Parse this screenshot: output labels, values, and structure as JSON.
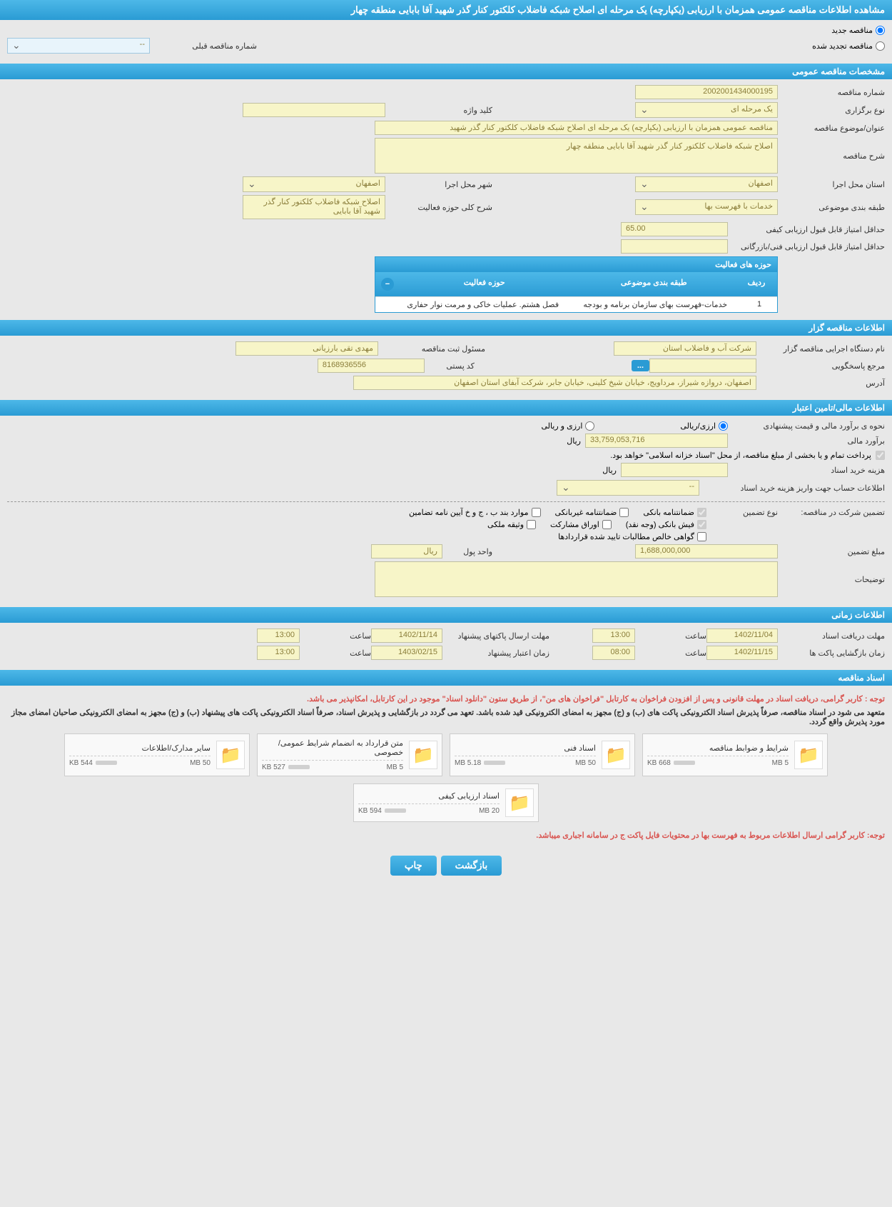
{
  "page_title": "مشاهده اطلاعات مناقصه عمومی همزمان با ارزیابی (یکپارچه) یک مرحله ای اصلاح شبکه فاضلاب کلکتور کنار گذر شهید آقا بابایی منطقه چهار",
  "colors": {
    "header_bg": "#2a9bd4",
    "header_gradient_top": "#4db8e8",
    "field_bg": "#f7f5c8",
    "field_border": "#c0c0a0",
    "field_text": "#8a7d3a",
    "page_bg": "#e8e8e8",
    "notice_red": "#d9534f"
  },
  "top_radio": {
    "option1": "مناقصه جدید",
    "option2": "مناقصه تجدید شده",
    "prev_number_label": "شماره مناقصه قبلی",
    "prev_number_value": "--"
  },
  "sections": {
    "general": "مشخصات مناقصه عمومی",
    "holder": "اطلاعات مناقصه گزار",
    "financial": "اطلاعات مالی/تامین اعتبار",
    "time": "اطلاعات زمانی",
    "documents": "اسناد مناقصه"
  },
  "general": {
    "tender_no_label": "شماره مناقصه",
    "tender_no": "2002001434000195",
    "type_label": "نوع برگزاری",
    "type": "یک مرحله ای",
    "keyword_label": "کلید واژه",
    "keyword": "",
    "subject_label": "عنوان/موضوع مناقصه",
    "subject": "مناقصه عمومی همزمان با ارزیابی (یکپارچه) یک مرحله ای اصلاح شبکه فاضلاب کلکتور کنار گذر شهید",
    "desc_label": "شرح مناقصه",
    "desc": "اصلاح شبکه فاضلاب کلکتور کنار گذر شهید آقا بابایی منطقه چهار",
    "province_label": "استان محل اجرا",
    "province": "اصفهان",
    "city_label": "شهر محل اجرا",
    "city": "اصفهان",
    "category_label": "طبقه بندی موضوعی",
    "category": "خدمات با فهرست بها",
    "scope_label": "شرح کلی حوزه فعالیت",
    "scope": "اصلاح شبکه فاضلاب کلکتور کنار گذر شهید آقا بابایی",
    "min_qual_label": "حداقل امتیاز قابل قبول ارزیابی کیفی",
    "min_qual": "65.00",
    "min_tech_label": "حداقل امتیاز قابل قبول ارزیابی فنی/بازرگانی",
    "min_tech": ""
  },
  "activity_table": {
    "title": "حوزه های فعالیت",
    "cols": {
      "row": "ردیف",
      "category": "طبقه بندی موضوعی",
      "activity": "حوزه فعالیت"
    },
    "rows": [
      {
        "row": "1",
        "category": "خدمات-فهرست بهای سازمان برنامه و بودجه",
        "activity": "فصل هشتم. عملیات خاکی و مرمت نوار حفاری"
      }
    ]
  },
  "holder": {
    "org_label": "نام دستگاه اجرایی مناقصه گزار",
    "org": "شرکت آب و فاضلاب استان",
    "reg_label": "مسئول ثبت مناقصه",
    "reg": "مهدی تقی بارزیانی",
    "responder_label": "مرجع پاسخگویی",
    "responder": "",
    "postal_label": "کد پستی",
    "postal": "8168936556",
    "address_label": "آدرس",
    "address": "اصفهان، دروازه شیراز، مرداویج، خیابان شیخ کلینی، خیابان جابر، شرکت آبفای استان اصفهان"
  },
  "financial": {
    "method_label": "نحوه ی برآورد مالی و قیمت پیشنهادی",
    "method_opt1": "ارزی/ریالی",
    "method_opt2": "ارزی و ریالی",
    "estimate_label": "برآورد مالی",
    "estimate": "33,759,053,716",
    "currency": "ریال",
    "treasury_note": "پرداخت تمام و یا بخشی از مبلغ مناقصه، از محل \"اسناد خزانه اسلامی\" خواهد بود.",
    "purchase_cost_label": "هزینه خرید اسناد",
    "purchase_cost": "",
    "account_label": "اطلاعات حساب جهت واریز هزینه خرید اسناد",
    "account": "--",
    "guarantee_title": "تضمین شرکت در مناقصه:",
    "guarantee_type_label": "نوع تضمین",
    "guarantee_opts": {
      "bank": "ضمانتنامه بانکی",
      "nonbank": "ضمانتنامه غیربانکی",
      "bond": "موارد بند ب ، ج و خ آیین نامه تضامین",
      "cash": "فیش بانکی (وجه نقد)",
      "securities": "اوراق مشارکت",
      "property": "وثیقه ملکی",
      "receivables": "گواهی خالص مطالبات تایید شده قراردادها"
    },
    "guarantee_amount_label": "مبلغ تضمین",
    "guarantee_amount": "1,688,000,000",
    "unit_label": "واحد پول",
    "unit": "ریال",
    "notes_label": "توضیحات",
    "notes": ""
  },
  "time": {
    "receipt_label": "مهلت دریافت اسناد",
    "receipt_date": "1402/11/04",
    "receipt_time_label": "ساعت",
    "receipt_time": "13:00",
    "proposal_label": "مهلت ارسال پاکتهای پیشنهاد",
    "proposal_date": "1402/11/14",
    "proposal_time": "13:00",
    "opening_label": "زمان بازگشایی پاکت ها",
    "opening_date": "1402/11/15",
    "opening_time": "08:00",
    "validity_label": "زمان اعتبار پیشنهاد",
    "validity_date": "1403/02/15",
    "validity_time": "13:00"
  },
  "documents": {
    "notice1": "توجه : کاربر گرامی، دریافت اسناد در مهلت قانونی و پس از افزودن فراخوان به کارتابل \"فراخوان های من\"، از طریق ستون \"دانلود اسناد\" موجود در این کارتابل، امکانپذیر می باشد.",
    "notice2": "متعهد می شود در اسناد مناقصه، صرفاً پذیرش اسناد الکترونیکی پاکت های (ب) و (ج) مجهز به امضای الکترونیکی قید شده باشد. تعهد می گردد در بازگشایی و پذیرش اسناد، صرفاً اسناد الکترونیکی پاکت های پیشنهاد (ب) و (ج) مجهز به امضای الکترونیکی صاحبان امضای مجاز مورد پذیرش واقع گردد.",
    "items": [
      {
        "title": "شرایط و ضوابط مناقصه",
        "size": "668 KB",
        "limit": "5 MB"
      },
      {
        "title": "اسناد فنی",
        "size": "5.18 MB",
        "limit": "50 MB"
      },
      {
        "title": "متن قرارداد به انضمام شرایط عمومی/خصوصی",
        "size": "527 KB",
        "limit": "5 MB"
      },
      {
        "title": "سایر مدارک/اطلاعات",
        "size": "544 KB",
        "limit": "50 MB"
      },
      {
        "title": "اسناد ارزیابی کیفی",
        "size": "594 KB",
        "limit": "20 MB"
      }
    ],
    "bottom_notice": "توجه: کاربر گرامی ارسال اطلاعات مربوط به فهرست بها در محتویات فایل پاکت ج در سامانه اجباری میباشد."
  },
  "buttons": {
    "back": "بازگشت",
    "print": "چاپ"
  }
}
